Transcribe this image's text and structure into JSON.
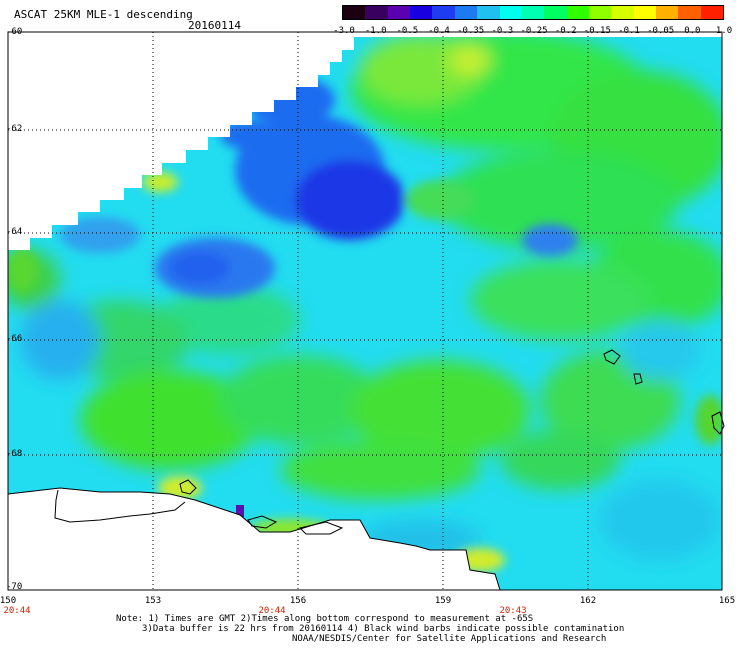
{
  "title": "ASCAT 25KM MLE-1 descending",
  "date": "20160114",
  "colorbar": {
    "labels": [
      "-3.0",
      "-1.0",
      "-0.5",
      "-0.4",
      "-0.35",
      "-0.3",
      "-0.25",
      "-0.2",
      "-0.15",
      "-0.1",
      "-0.05",
      "0.0",
      "1.0"
    ],
    "colors": [
      "#1a0010",
      "#3a0060",
      "#5a00b0",
      "#1a00e0",
      "#1f3cf0",
      "#1e7af0",
      "#20c0f0",
      "#00ffee",
      "#00ffb0",
      "#00ff60",
      "#30ff00",
      "#90ff00",
      "#d8ff00",
      "#ffff00",
      "#ffb000",
      "#ff6000",
      "#ff2000"
    ]
  },
  "axes": {
    "lat_labels": [
      "-60",
      "-62",
      "-64",
      "-66",
      "-68",
      "-70"
    ],
    "lon_labels": [
      "150",
      "153",
      "156",
      "159",
      "162",
      "165"
    ],
    "time_labels": [
      "20:44",
      "20:44",
      "20:43"
    ]
  },
  "notes": [
    "Note: 1) Times are GMT 2)Times along bottom correspond to measurement at -65S",
    "3)Data buffer is 22 hrs from 20160114 4) Black wind barbs indicate possible contamination",
    "NOAA/NESDIS/Center for Satellite Applications and Research"
  ]
}
